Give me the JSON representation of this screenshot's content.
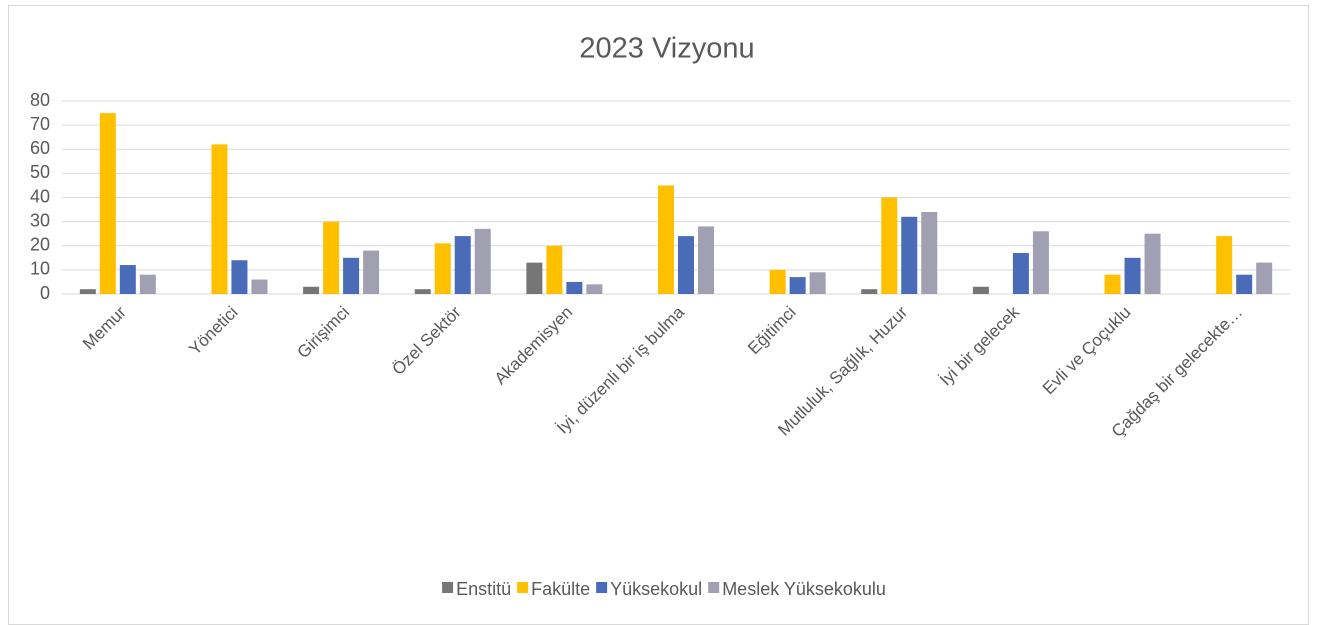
{
  "chart_data": {
    "type": "bar",
    "title": "2023 Vizyonu",
    "categories": [
      "Memur",
      "Yönetici",
      "Girişimci",
      "Özel Sektör",
      "Akademisyen",
      "İyi, düzenli bir iş bulma",
      "Eğitimci",
      "Mutluluk, Sağlık, Huzur",
      "İyi bir gelecek",
      "Evli ve Çoçuklu",
      "Çağdaş bir gelecekte…"
    ],
    "series": [
      {
        "name": "Enstitü",
        "color": "#767676",
        "values": [
          2,
          0,
          3,
          2,
          13,
          0,
          0,
          2,
          3,
          0,
          0
        ]
      },
      {
        "name": "Fakülte",
        "color": "#ffc000",
        "values": [
          75,
          62,
          30,
          21,
          20,
          45,
          10,
          40,
          0,
          8,
          24
        ]
      },
      {
        "name": "Yüksekokul",
        "color": "#4a6bb8",
        "values": [
          12,
          14,
          15,
          24,
          5,
          24,
          7,
          32,
          17,
          15,
          8
        ]
      },
      {
        "name": "Meslek Yüksekokulu",
        "color": "#a0a0b2",
        "values": [
          8,
          6,
          18,
          27,
          4,
          28,
          9,
          34,
          26,
          25,
          13
        ]
      }
    ],
    "ylim": [
      0,
      80
    ],
    "yticks": [
      0,
      10,
      20,
      30,
      40,
      50,
      60,
      70,
      80
    ],
    "grid": true,
    "legend": "bottom"
  }
}
